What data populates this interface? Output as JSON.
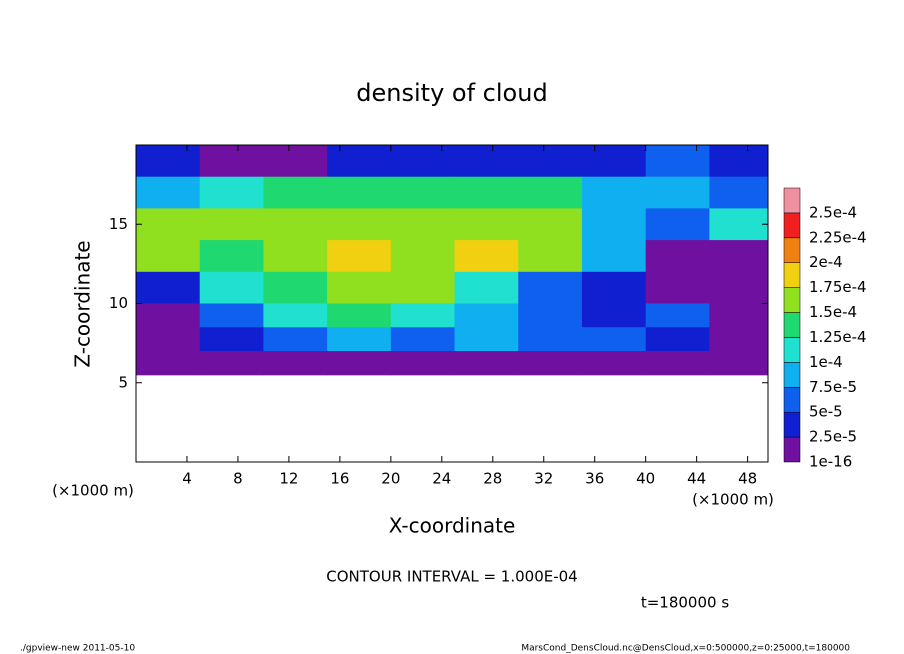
{
  "chart_data": {
    "type": "heatmap",
    "title": "density of cloud",
    "x_label": "X-coordinate",
    "y_label": "Z-coordinate",
    "x_unit": "(×1000 m)",
    "y_unit": "(×1000 m)",
    "contour_note": "CONTOUR INTERVAL = 1.000E-04",
    "time_note": "t=180000 s",
    "footer_left": "./gpview-new  2011-05-10",
    "footer_right": "MarsCond_DensCloud.nc@DensCloud,x=0:500000,z=0:25000,t=180000",
    "xlim": [
      0,
      49.6
    ],
    "ylim": [
      0,
      20
    ],
    "xticks": [
      4,
      8,
      12,
      16,
      20,
      24,
      28,
      32,
      36,
      40,
      44,
      48
    ],
    "yticks": [
      5,
      10,
      15
    ],
    "levels": [
      {
        "value": 1e-16,
        "label": "1e-16"
      },
      {
        "value": 2.5e-05,
        "label": "2.5e-5"
      },
      {
        "value": 5e-05,
        "label": "5e-5"
      },
      {
        "value": 7.5e-05,
        "label": "7.5e-5"
      },
      {
        "value": 0.0001,
        "label": "1e-4"
      },
      {
        "value": 0.000125,
        "label": "1.25e-4"
      },
      {
        "value": 0.00015,
        "label": "1.5e-4"
      },
      {
        "value": 0.000175,
        "label": "1.75e-4"
      },
      {
        "value": 0.0002,
        "label": "2e-4"
      },
      {
        "value": 0.000225,
        "label": "2.25e-4"
      },
      {
        "value": 0.00025,
        "label": "2.5e-4"
      }
    ],
    "colors": [
      "#7010a0",
      "#1020d0",
      "#1060f0",
      "#10b0f0",
      "#20e0d0",
      "#20d870",
      "#90e020",
      "#f0d010",
      "#f08010",
      "#f02020",
      "#f090a0"
    ],
    "field": {
      "x_edges": [
        0,
        5,
        10,
        15,
        20,
        25,
        30,
        35,
        40,
        45,
        50
      ],
      "z_edges": [
        20,
        18,
        16,
        14,
        12,
        10,
        8.5,
        7,
        5.5
      ],
      "values": [
        [
          3e-05,
          2e-05,
          2e-05,
          3e-05,
          3e-05,
          3e-05,
          3e-05,
          4e-05,
          6e-05,
          4e-05
        ],
        [
          9e-05,
          0.00012,
          0.00013,
          0.00014,
          0.00014,
          0.00014,
          0.00013,
          9e-05,
          8e-05,
          6e-05
        ],
        [
          0.00016,
          0.00015,
          0.00017,
          0.00016,
          0.00017,
          0.00016,
          0.00015,
          8e-05,
          7e-05,
          0.0001
        ],
        [
          0.00015,
          0.00014,
          0.00017,
          0.00018,
          0.00017,
          0.00018,
          0.00016,
          8e-05,
          2e-05,
          1e-05
        ],
        [
          4e-05,
          0.00012,
          0.00014,
          0.00015,
          0.00016,
          0.00012,
          5e-05,
          3e-05,
          1e-05,
          1e-05
        ],
        [
          1e-05,
          7e-05,
          0.00011,
          0.00013,
          0.00012,
          9e-05,
          6e-05,
          4e-05,
          5e-05,
          1e-05
        ],
        [
          1e-05,
          4e-05,
          6e-05,
          8e-05,
          7e-05,
          8e-05,
          6e-05,
          6e-05,
          3e-05,
          1e-05
        ],
        [
          1e-16,
          1e-05,
          1e-05,
          2e-05,
          2e-05,
          2e-05,
          1e-05,
          1e-05,
          1e-16,
          1e-16
        ]
      ]
    }
  }
}
